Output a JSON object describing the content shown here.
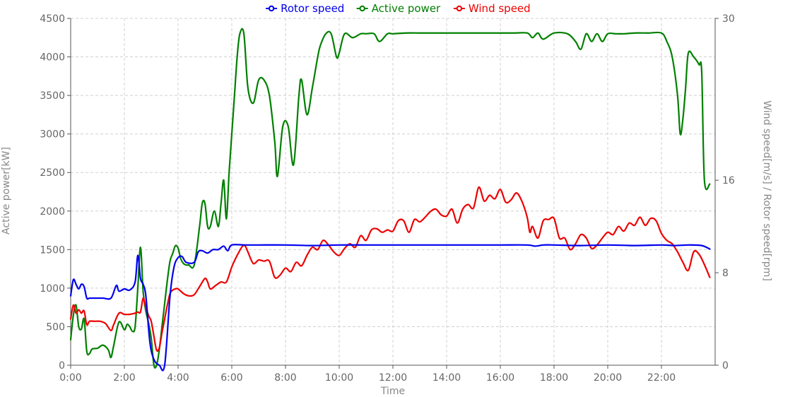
{
  "chart_data": {
    "type": "line",
    "xlabel": "Time",
    "ylabel_left": "Active power[kW]",
    "ylabel_right": "Wind speed[m/s] / Rotor speed[rpm]",
    "x_range_hours": [
      0,
      24
    ],
    "x_ticks": [
      "0:00",
      "2:00",
      "4:00",
      "6:00",
      "8:00",
      "10:00",
      "12:00",
      "14:00",
      "16:00",
      "18:00",
      "20:00",
      "22:00"
    ],
    "x_tick_hours": [
      0,
      2,
      4,
      6,
      8,
      10,
      12,
      14,
      16,
      18,
      20,
      22
    ],
    "y_left_range": [
      0,
      4500
    ],
    "y_left_ticks": [
      0,
      500,
      1000,
      1500,
      2000,
      2500,
      3000,
      3500,
      4000,
      4500
    ],
    "y_right_range": [
      0,
      30
    ],
    "y_right_ticks": [
      0,
      8,
      16,
      30
    ],
    "grid": true,
    "legend_position": "top-center",
    "series": [
      {
        "name": "Rotor speed",
        "color": "#0000ee",
        "axis": "right",
        "x": [
          0,
          0.1,
          0.2,
          0.3,
          0.4,
          0.5,
          0.6,
          0.7,
          0.9,
          1.2,
          1.5,
          1.7,
          1.8,
          2.0,
          2.2,
          2.4,
          2.5,
          2.6,
          2.7,
          2.8,
          2.95,
          3.1,
          3.3,
          3.5,
          3.7,
          3.85,
          4.0,
          4.15,
          4.3,
          4.6,
          4.75,
          4.9,
          5.1,
          5.3,
          5.5,
          5.7,
          5.85,
          6.0,
          6.5,
          7.0,
          8.0,
          9.0,
          10.0,
          11.0,
          12.0,
          13.0,
          14.0,
          15.0,
          16.0,
          17.0,
          17.3,
          17.6,
          18.0,
          19.0,
          20.0,
          21.0,
          22.0,
          22.5,
          23.0,
          23.5,
          23.8
        ],
        "y": [
          6.0,
          7.4,
          7.0,
          6.6,
          7.0,
          6.8,
          5.8,
          5.8,
          5.8,
          5.8,
          5.8,
          6.9,
          6.4,
          6.6,
          6.5,
          7.2,
          9.5,
          7.5,
          7.0,
          6.0,
          2.0,
          0.5,
          0.0,
          0.0,
          6.0,
          8.5,
          9.3,
          9.4,
          8.9,
          8.9,
          9.8,
          9.9,
          9.7,
          10.0,
          10.0,
          10.3,
          9.9,
          10.4,
          10.4,
          10.4,
          10.4,
          10.35,
          10.4,
          10.4,
          10.4,
          10.4,
          10.4,
          10.4,
          10.4,
          10.4,
          10.3,
          10.4,
          10.4,
          10.35,
          10.4,
          10.35,
          10.4,
          10.35,
          10.4,
          10.35,
          10.05
        ]
      },
      {
        "name": "Active power",
        "color": "#008000",
        "axis": "left",
        "x": [
          0,
          0.1,
          0.2,
          0.3,
          0.4,
          0.5,
          0.6,
          0.7,
          0.8,
          1.0,
          1.2,
          1.4,
          1.5,
          1.6,
          1.8,
          2.0,
          2.1,
          2.2,
          2.3,
          2.4,
          2.5,
          2.6,
          2.7,
          2.8,
          2.9,
          3.0,
          3.1,
          3.2,
          3.3,
          3.4,
          3.5,
          3.6,
          3.7,
          3.8,
          3.9,
          4.0,
          4.1,
          4.2,
          4.3,
          4.4,
          4.6,
          4.8,
          4.9,
          5.0,
          5.1,
          5.2,
          5.35,
          5.5,
          5.6,
          5.7,
          5.8,
          5.9,
          6.0,
          6.1,
          6.2,
          6.3,
          6.45,
          6.6,
          6.8,
          7.0,
          7.2,
          7.4,
          7.6,
          7.7,
          7.9,
          8.1,
          8.3,
          8.5,
          8.6,
          8.8,
          9.0,
          9.2,
          9.3,
          9.5,
          9.7,
          9.9,
          10.0,
          10.2,
          10.5,
          10.8,
          11.0,
          11.3,
          11.5,
          11.8,
          12.0,
          12.5,
          13.0,
          13.5,
          14.0,
          14.5,
          15.0,
          15.5,
          16.0,
          16.5,
          17.0,
          17.2,
          17.4,
          17.6,
          18.0,
          18.5,
          18.8,
          19.0,
          19.2,
          19.4,
          19.6,
          19.8,
          20.0,
          20.3,
          20.6,
          21.0,
          21.5,
          22.0,
          22.2,
          22.4,
          22.6,
          22.7,
          22.8,
          22.9,
          23.0,
          23.2,
          23.4,
          23.5,
          23.6,
          23.8
        ],
        "y": [
          330,
          650,
          780,
          500,
          470,
          600,
          180,
          150,
          210,
          220,
          260,
          200,
          100,
          250,
          560,
          460,
          530,
          500,
          440,
          500,
          1000,
          1530,
          950,
          700,
          550,
          350,
          0,
          0,
          200,
          500,
          800,
          1100,
          1350,
          1450,
          1550,
          1520,
          1380,
          1320,
          1300,
          1300,
          1300,
          1800,
          2100,
          2100,
          1800,
          1800,
          2000,
          1800,
          2100,
          2400,
          1900,
          2500,
          3000,
          3500,
          4000,
          4300,
          4300,
          3600,
          3400,
          3700,
          3700,
          3500,
          2900,
          2450,
          3100,
          3100,
          2600,
          3500,
          3700,
          3250,
          3600,
          4000,
          4150,
          4300,
          4300,
          4000,
          4050,
          4300,
          4250,
          4300,
          4300,
          4300,
          4200,
          4300,
          4300,
          4310,
          4310,
          4310,
          4310,
          4310,
          4310,
          4310,
          4310,
          4310,
          4310,
          4250,
          4310,
          4230,
          4310,
          4300,
          4200,
          4100,
          4300,
          4200,
          4300,
          4200,
          4300,
          4300,
          4300,
          4310,
          4310,
          4310,
          4200,
          4000,
          3500,
          3000,
          3200,
          3600,
          4050,
          4000,
          3900,
          3800,
          2400,
          2350
        ]
      },
      {
        "name": "Wind speed",
        "color": "#ee0000",
        "axis": "right",
        "x": [
          0,
          0.1,
          0.2,
          0.3,
          0.4,
          0.5,
          0.6,
          0.7,
          0.9,
          1.1,
          1.3,
          1.5,
          1.6,
          1.8,
          2.0,
          2.2,
          2.4,
          2.5,
          2.6,
          2.7,
          2.8,
          2.9,
          3.0,
          3.1,
          3.2,
          3.3,
          3.4,
          3.5,
          3.6,
          3.7,
          3.8,
          3.9,
          4.0,
          4.2,
          4.4,
          4.6,
          4.8,
          5.0,
          5.1,
          5.2,
          5.4,
          5.6,
          5.8,
          6.0,
          6.2,
          6.4,
          6.5,
          6.6,
          6.8,
          7.0,
          7.2,
          7.4,
          7.6,
          7.8,
          8.0,
          8.2,
          8.4,
          8.6,
          8.8,
          9.0,
          9.2,
          9.4,
          9.6,
          9.8,
          10.0,
          10.2,
          10.4,
          10.6,
          10.8,
          11.0,
          11.2,
          11.4,
          11.6,
          11.8,
          12.0,
          12.2,
          12.4,
          12.6,
          12.8,
          13.0,
          13.2,
          13.4,
          13.6,
          13.8,
          14.0,
          14.2,
          14.4,
          14.6,
          14.8,
          15.0,
          15.2,
          15.4,
          15.6,
          15.8,
          16.0,
          16.2,
          16.4,
          16.6,
          16.8,
          17.0,
          17.1,
          17.2,
          17.4,
          17.6,
          17.8,
          18.0,
          18.2,
          18.4,
          18.6,
          18.8,
          19.0,
          19.2,
          19.4,
          19.6,
          19.8,
          20.0,
          20.2,
          20.4,
          20.6,
          20.8,
          21.0,
          21.2,
          21.4,
          21.6,
          21.8,
          22.0,
          22.2,
          22.4,
          22.6,
          22.8,
          23.0,
          23.2,
          23.4,
          23.6,
          23.8
        ],
        "y": [
          4.0,
          5.2,
          4.5,
          4.8,
          4.5,
          4.7,
          3.5,
          3.8,
          3.8,
          3.8,
          3.6,
          3.0,
          3.5,
          4.5,
          4.4,
          4.4,
          4.5,
          4.6,
          4.6,
          5.8,
          5.0,
          4.3,
          3.8,
          2.5,
          1.3,
          1.5,
          2.8,
          4.0,
          5.2,
          6.2,
          6.5,
          6.6,
          6.6,
          6.2,
          6.0,
          6.1,
          6.8,
          7.5,
          7.2,
          6.6,
          6.9,
          7.2,
          7.2,
          8.5,
          9.5,
          10.3,
          10.3,
          9.8,
          8.8,
          9.1,
          9.0,
          9.0,
          7.6,
          7.8,
          8.4,
          8.1,
          8.9,
          8.6,
          9.5,
          10.2,
          10.0,
          10.8,
          10.4,
          9.8,
          9.5,
          10.1,
          10.5,
          10.2,
          11.2,
          10.8,
          11.7,
          11.8,
          11.5,
          11.7,
          11.6,
          12.5,
          12.5,
          11.5,
          12.6,
          12.4,
          12.8,
          13.3,
          13.5,
          13.0,
          12.9,
          13.5,
          12.3,
          13.5,
          13.9,
          13.6,
          15.4,
          14.2,
          14.7,
          14.4,
          15.2,
          14.1,
          14.3,
          14.9,
          14.2,
          12.8,
          11.5,
          12.0,
          11.0,
          12.5,
          12.6,
          12.7,
          11.0,
          11.0,
          10.0,
          10.5,
          11.3,
          11.0,
          10.1,
          10.4,
          11.0,
          11.5,
          11.3,
          12.0,
          11.6,
          12.3,
          12.1,
          12.8,
          12.1,
          12.7,
          12.5,
          11.4,
          10.8,
          10.5,
          9.8,
          8.9,
          8.2,
          9.8,
          9.6,
          8.7,
          7.6
        ]
      }
    ]
  }
}
